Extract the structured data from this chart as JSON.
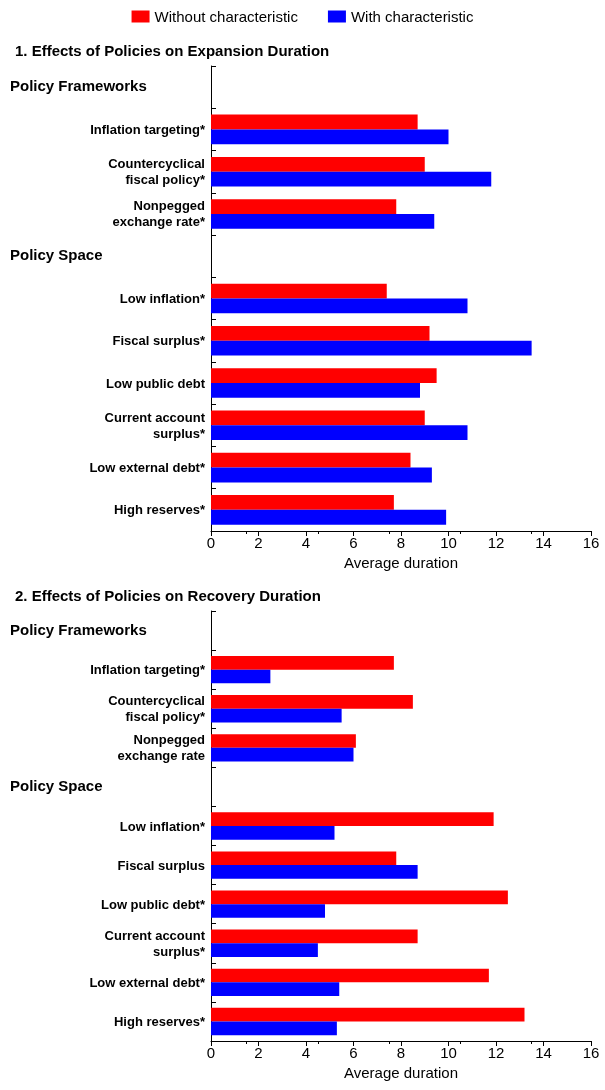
{
  "chart_data": [
    {
      "type": "bar",
      "orientation": "horizontal",
      "title": "1. Effects of Policies on Expansion Duration",
      "xlabel": "Average duration",
      "legend": "top",
      "grid": false,
      "annotations": [
        "Policy Frameworks",
        "Policy Space"
      ],
      "categories": [
        null,
        "Inflation targeting*",
        "Countercyclical\nfiscal policy*",
        "Nonpegged\nexchange rate*",
        null,
        "Low inflation*",
        "Fiscal surplus*",
        "Low public debt",
        "Current account\nsurplus*",
        "Low external debt*",
        "High reserves*"
      ],
      "series": [
        {
          "name": "Without characteristic",
          "color": "#ff0000",
          "values": [
            null,
            8.7,
            9.0,
            7.8,
            null,
            7.4,
            9.2,
            9.5,
            9.0,
            8.4,
            7.7
          ]
        },
        {
          "name": "With characteristic",
          "color": "#0000ff",
          "values": [
            null,
            10.0,
            11.8,
            9.4,
            null,
            10.8,
            13.5,
            8.8,
            10.8,
            9.3,
            9.9
          ]
        }
      ],
      "xlim": [
        0,
        16
      ],
      "xticks": [
        0,
        2,
        4,
        6,
        8,
        10,
        12,
        14,
        16
      ]
    },
    {
      "type": "bar",
      "orientation": "horizontal",
      "title": "2. Effects of Policies on Recovery Duration",
      "xlabel": "Average duration",
      "grid": false,
      "annotations": [
        "Policy Frameworks",
        "Policy Space"
      ],
      "categories": [
        null,
        "Inflation targeting*",
        "Countercyclical\nfiscal policy*",
        "Nonpegged\nexchange rate",
        null,
        "Low inflation*",
        "Fiscal surplus",
        "Low public debt*",
        "Current account\nsurplus*",
        "Low external debt*",
        "High reserves*"
      ],
      "series": [
        {
          "color": "#ff0000",
          "values": [
            null,
            7.7,
            8.5,
            6.1,
            null,
            11.9,
            7.8,
            12.5,
            8.7,
            11.7,
            13.2
          ]
        },
        {
          "color": "#0000ff",
          "values": [
            null,
            2.5,
            5.5,
            6.0,
            null,
            5.2,
            8.7,
            4.8,
            4.5,
            5.4,
            5.3
          ]
        }
      ],
      "xlim": [
        0,
        16
      ],
      "xticks": [
        0,
        2,
        4,
        6,
        8,
        10,
        12,
        14,
        16
      ]
    }
  ]
}
